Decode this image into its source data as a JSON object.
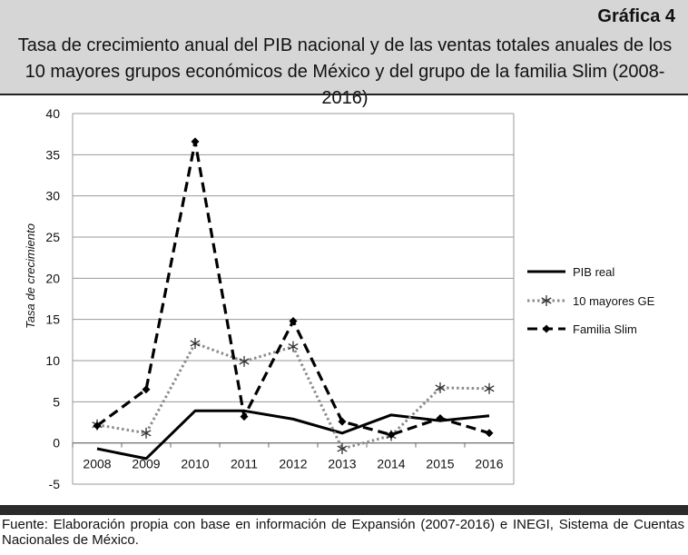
{
  "header": {
    "number": "Gráfica 4",
    "title": "Tasa de crecimiento anual del PIB nacional y de las ventas totales anuales de los 10 mayores grupos económicos de México y del grupo de la familia Slim (2008-2016)"
  },
  "source": "Fuente: Elaboración propia con base en información de Expansión (2007-2016) e INEGI, Sistema de Cuentas Nacionales de México.",
  "chart_data": {
    "type": "line",
    "title": "Tasa de crecimiento anual del PIB nacional y de las ventas totales anuales de los 10 mayores grupos económicos de México y del grupo de la familia Slim (2008-2016)",
    "xlabel": "",
    "ylabel": "Tasa de crecimiento",
    "categories": [
      "2008",
      "2009",
      "2010",
      "2011",
      "2012",
      "2013",
      "2014",
      "2015",
      "2016"
    ],
    "ylim": [
      -5,
      40
    ],
    "yticks": [
      -5,
      0,
      5,
      10,
      15,
      20,
      25,
      30,
      35,
      40
    ],
    "grid": true,
    "legend_position": "right",
    "series": [
      {
        "name": "PIB real",
        "style": "solid",
        "color": "#000000",
        "marker": "none",
        "values": [
          -0.7,
          -1.9,
          3.9,
          3.9,
          2.9,
          1.2,
          3.4,
          2.7,
          3.3
        ]
      },
      {
        "name": "10 mayores GE",
        "style": "dotted",
        "color": "#8c8c8c",
        "marker": "asterisk",
        "values": [
          2.2,
          1.2,
          12.1,
          9.9,
          11.7,
          -0.7,
          0.9,
          6.7,
          6.6
        ]
      },
      {
        "name": "Familia Slim",
        "style": "dashed",
        "color": "#000000",
        "marker": "diamond",
        "values": [
          2.1,
          6.5,
          36.6,
          3.2,
          14.8,
          2.6,
          1.0,
          3.0,
          1.2
        ]
      }
    ]
  }
}
